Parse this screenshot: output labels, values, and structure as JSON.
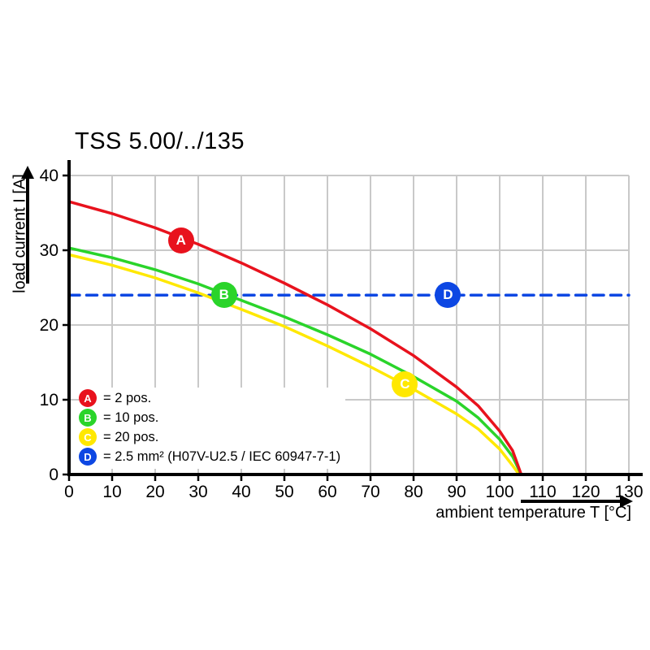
{
  "title": "TSS 5.00/../135",
  "y_axis": {
    "label": "load current I [A]"
  },
  "x_axis": {
    "label": "ambient temperature T [°C]"
  },
  "legend": {
    "items": [
      {
        "letter": "A",
        "color": "#e8121d",
        "label": "= 2 pos."
      },
      {
        "letter": "B",
        "color": "#2ad42a",
        "label": "= 10 pos."
      },
      {
        "letter": "C",
        "color": "#ffe800",
        "label": "= 20 pos."
      },
      {
        "letter": "D",
        "color": "#0d47e3",
        "label": "= 2.5 mm² (H07V-U2.5 / IEC 60947-7-1)"
      }
    ]
  },
  "chart_data": {
    "type": "line",
    "title": "TSS 5.00/../135",
    "xlabel": "ambient temperature T [°C]",
    "ylabel": "load current I [A]",
    "xlim": [
      0,
      130
    ],
    "ylim": [
      0,
      40
    ],
    "x_ticks": [
      0,
      10,
      20,
      30,
      40,
      50,
      60,
      70,
      80,
      90,
      100,
      110,
      120,
      130
    ],
    "y_ticks": [
      0,
      10,
      20,
      30,
      40
    ],
    "grid": true,
    "legend_position": "inside lower-left",
    "colors": {
      "grid": "#c9c9c9",
      "axis": "#000000"
    },
    "series": [
      {
        "name": "A = 2 pos.",
        "letter": "A",
        "color": "#e8121d",
        "style": "solid",
        "marker": {
          "letter": "A",
          "x": 26,
          "y": 31.3
        },
        "points": [
          [
            0,
            36.5
          ],
          [
            10,
            34.9
          ],
          [
            20,
            33.0
          ],
          [
            30,
            30.8
          ],
          [
            40,
            28.3
          ],
          [
            50,
            25.6
          ],
          [
            60,
            22.7
          ],
          [
            70,
            19.5
          ],
          [
            80,
            15.9
          ],
          [
            90,
            11.7
          ],
          [
            95,
            9.2
          ],
          [
            100,
            5.8
          ],
          [
            103,
            3.2
          ],
          [
            105,
            0
          ]
        ]
      },
      {
        "name": "B = 10 pos.",
        "letter": "B",
        "color": "#2ad42a",
        "style": "solid",
        "marker": {
          "letter": "B",
          "x": 36,
          "y": 24
        },
        "points": [
          [
            0,
            30.3
          ],
          [
            10,
            29.0
          ],
          [
            20,
            27.4
          ],
          [
            30,
            25.5
          ],
          [
            40,
            23.3
          ],
          [
            50,
            21.1
          ],
          [
            60,
            18.7
          ],
          [
            70,
            16.1
          ],
          [
            80,
            13.1
          ],
          [
            90,
            9.8
          ],
          [
            95,
            7.6
          ],
          [
            100,
            4.7
          ],
          [
            103,
            2.4
          ],
          [
            105,
            0
          ]
        ]
      },
      {
        "name": "C = 20 pos.",
        "letter": "C",
        "color": "#ffe800",
        "style": "solid",
        "marker": {
          "letter": "C",
          "x": 78,
          "y": 12.1
        },
        "points": [
          [
            0,
            29.4
          ],
          [
            10,
            28.0
          ],
          [
            20,
            26.3
          ],
          [
            30,
            24.3
          ],
          [
            40,
            22.1
          ],
          [
            50,
            19.8
          ],
          [
            60,
            17.2
          ],
          [
            70,
            14.4
          ],
          [
            80,
            11.4
          ],
          [
            90,
            8.1
          ],
          [
            95,
            6.1
          ],
          [
            100,
            3.4
          ],
          [
            103,
            1.2
          ],
          [
            104.5,
            0
          ]
        ]
      },
      {
        "name": "D = 2.5 mm² (H07V-U2.5 / IEC 60947-7-1)",
        "letter": "D",
        "color": "#0d47e3",
        "style": "dashed",
        "marker": {
          "letter": "D",
          "x": 88,
          "y": 24
        },
        "points": [
          [
            0,
            24
          ],
          [
            130,
            24
          ]
        ]
      }
    ]
  }
}
